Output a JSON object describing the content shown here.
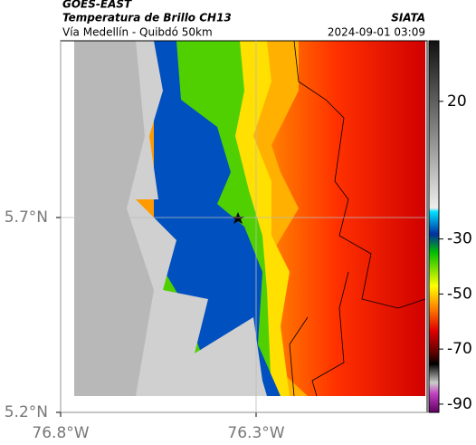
{
  "header": {
    "title": "GOES-EAST",
    "subtitle": "Temperatura de Brillo CH13",
    "route": "Vía Medellín - Quibdó 50km",
    "source": "SIATA",
    "datetime": "2024-09-01 03:09"
  },
  "map": {
    "xlim": [
      -76.8,
      -75.8625
    ],
    "ylim": [
      5.2,
      6.1535
    ],
    "xticks": [
      {
        "value": -76.8,
        "label": "76.8°W"
      },
      {
        "value": -76.3,
        "label": "76.3°W"
      }
    ],
    "yticks": [
      {
        "value": 5.7,
        "label": "5.7°N"
      },
      {
        "value": 5.2,
        "label": "5.2°N"
      }
    ]
  },
  "colorbar": {
    "lim": [
      -93,
      42
    ],
    "ticks": [
      20,
      -30,
      -50,
      -70,
      -90
    ]
  }
}
